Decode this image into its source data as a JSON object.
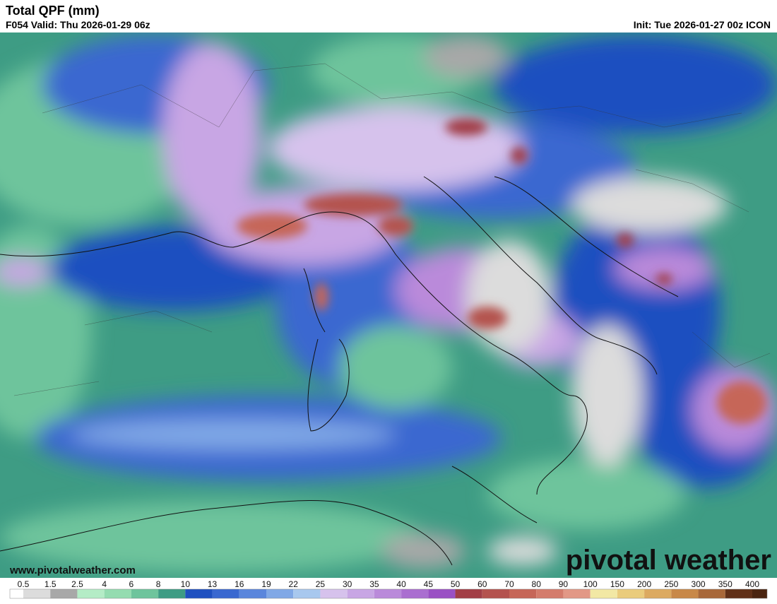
{
  "header": {
    "title": "Total QPF (mm)",
    "valid": "F054 Valid: Thu 2026-01-29 06z",
    "init": "Init: Tue 2026-01-27 00z ICON"
  },
  "watermark": {
    "url": "www.pivotalweather.com",
    "brand": "pivotal weather"
  },
  "legend": {
    "ticks": [
      0.5,
      1.5,
      2.5,
      4,
      6,
      8,
      10,
      13,
      16,
      19,
      22,
      25,
      30,
      35,
      40,
      45,
      50,
      60,
      70,
      80,
      90,
      100,
      150,
      200,
      250,
      300,
      350,
      400
    ],
    "colors": [
      "#ffffff",
      "#dcdcdc",
      "#a8a8a8",
      "#b4ecc6",
      "#94dcb0",
      "#6ec49c",
      "#3e9c84",
      "#1f50c0",
      "#3a68d0",
      "#5a86dc",
      "#80a8e6",
      "#a8c8ee",
      "#d6c2ec",
      "#c8a6e4",
      "#ba8ada",
      "#aa6ed0",
      "#9a50c4",
      "#a23e46",
      "#b4524e",
      "#c66658",
      "#d47c6c",
      "#e29886",
      "#f2e8a4",
      "#eacc7c",
      "#dcaa60",
      "#c88848",
      "#a8683a",
      "#603018",
      "#4a2410"
    ]
  }
}
